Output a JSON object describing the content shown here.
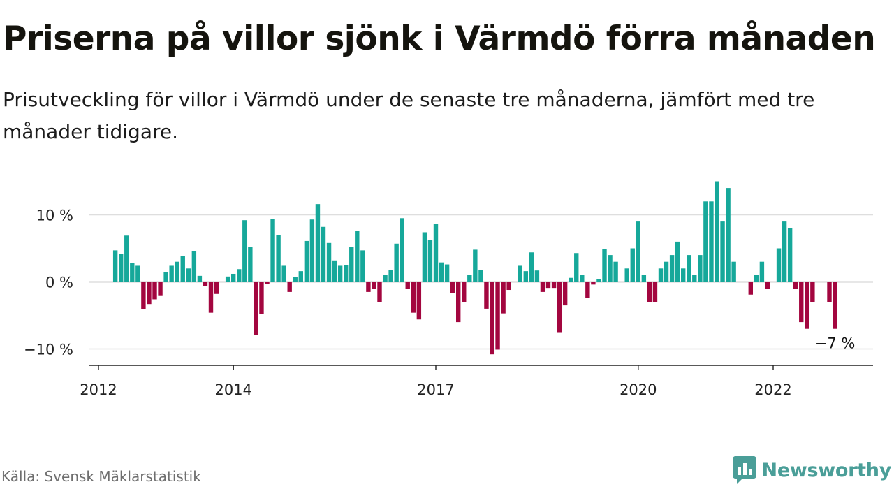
{
  "header": {
    "title": "Priserna på villor sjönk i Värmdö förra månaden",
    "subtitle": "Prisutveckling för villor i Värmdö under de senaste tre månaderna, jämfört med tre månader tidigare."
  },
  "footer": {
    "source": "Källa: Svensk Mäklarstatistik",
    "brand": "Newsworthy"
  },
  "colors": {
    "positive": "#16a89a",
    "negative": "#a3063f",
    "brand": "#4a9e98"
  },
  "chart_data": {
    "type": "bar",
    "title": "Priserna på villor sjönk i Värmdö förra månaden",
    "xlabel": "",
    "ylabel": "",
    "ylim": [
      -12.5,
      15
    ],
    "y_ticks": [
      -10,
      0,
      10
    ],
    "y_tick_labels": [
      "−10 %",
      "0 %",
      "10 %"
    ],
    "x_ticks": [
      "2012",
      "2014",
      "2017",
      "2020",
      "2022"
    ],
    "x_tick_months": [
      "2012-01",
      "2014-01",
      "2017-01",
      "2020-01",
      "2022-01"
    ],
    "grid": true,
    "end_label": "−7 %",
    "series": [
      {
        "start_month": "2012-04",
        "values": [
          4.7,
          4.2,
          6.9,
          2.8,
          2.4,
          -4.1,
          -3.3,
          -2.6,
          -2.0,
          1.5,
          2.4,
          3.0,
          3.9,
          2.0,
          4.6,
          0.9,
          -0.6,
          -4.6,
          -1.8,
          null,
          0.8,
          1.2,
          1.9,
          9.2,
          5.2,
          -7.9,
          -4.8,
          -0.3,
          9.4,
          7.0,
          2.4,
          -1.5,
          0.7,
          1.6,
          6.1,
          9.3,
          11.6,
          8.2,
          5.8,
          3.2,
          2.4,
          2.5,
          5.2,
          7.6,
          4.7,
          -1.5,
          -1.0,
          -3.0,
          1.0,
          1.8,
          5.7,
          9.5,
          -1.0,
          -4.6,
          -5.6,
          7.4,
          6.2,
          8.6,
          2.9,
          2.6,
          -1.7,
          -6.0,
          -3.0,
          1.0,
          4.8,
          1.8,
          -4.0,
          -10.8,
          -10.1,
          -4.7,
          -1.2,
          null,
          2.4,
          1.6,
          4.4,
          1.7,
          -1.5,
          -0.9,
          -0.9,
          -7.5,
          -3.5,
          0.6,
          4.3,
          1.0,
          -2.4,
          -0.4,
          0.4,
          4.9,
          4.0,
          3.0,
          null,
          2.0,
          5.0,
          9.0,
          1.0,
          -3.0,
          -3.0,
          2.0,
          3.0,
          4.0,
          6.0,
          2.0,
          4.0,
          1.0,
          4.0,
          12.0,
          12.0,
          15.0,
          9.0,
          14.0,
          3.0,
          null,
          null,
          -1.9,
          1.0,
          3.0,
          -1.0,
          null,
          5.0,
          9.0,
          8.0,
          -1.0,
          -6.0,
          -7.0,
          -3.0,
          null,
          null,
          -3.0,
          -7.0
        ]
      }
    ]
  }
}
